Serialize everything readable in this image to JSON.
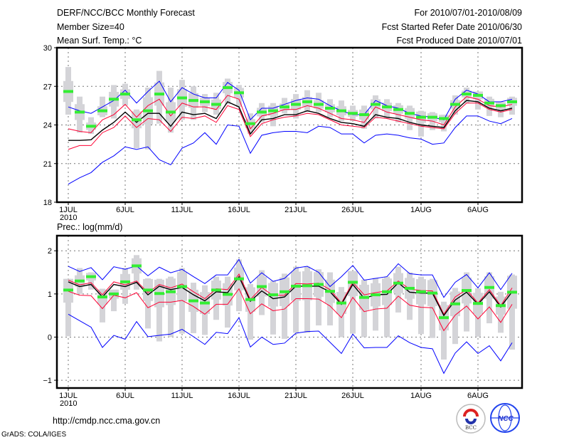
{
  "header": {
    "title": "DERF/NCC/BCC Monthly Forecast",
    "member_size": "Member Size=40",
    "period": "For 2010/07/01-2010/08/09",
    "start_date": "Fcst Started Refer Date 2010/06/30",
    "produced_date": "Fcst Produced Date 2010/07/01"
  },
  "footer": {
    "url": "http://cmdp.ncc.cma.gov.cn",
    "credit": "GrADS: COLA/IGES",
    "logo_bcc": "BCC",
    "logo_ncc": "NCC"
  },
  "colors": {
    "envelope": "#0000ff",
    "spread": "#ff0033",
    "mean": "#000000",
    "median": "#33ee33",
    "range": "#d4d4d8"
  },
  "chart_data": [
    {
      "type": "line",
      "title": "Mean Surf. Temp.: °C",
      "ylim": [
        18,
        30
      ],
      "yticks": [
        "18",
        "21",
        "24",
        "27",
        "30"
      ],
      "ytick_values": [
        18,
        21,
        24,
        27,
        30
      ],
      "xticks": [
        "1JUL",
        "6JUL",
        "11JUL",
        "16JUL",
        "21JUL",
        "26JUL",
        "1AUG",
        "6AUG"
      ],
      "xtick_days": [
        0,
        5,
        10,
        15,
        20,
        25,
        31,
        36
      ],
      "year_label": "2010",
      "grid": true,
      "days": 40,
      "series": {
        "upper_blue": [
          25.4,
          25.1,
          24.9,
          25.4,
          25.9,
          26.7,
          25.7,
          26.6,
          27.4,
          25.8,
          26.9,
          26.4,
          26.1,
          26.1,
          27.3,
          26.7,
          24.4,
          25.3,
          25.3,
          25.6,
          25.9,
          26.1,
          26.0,
          25.5,
          25.1,
          24.8,
          24.8,
          25.9,
          25.5,
          25.3,
          24.9,
          24.7,
          24.6,
          24.4,
          26.0,
          26.7,
          26.4,
          25.8,
          25.8,
          26.0
        ],
        "upper_red": [
          23.7,
          23.5,
          23.4,
          24.4,
          24.8,
          25.6,
          24.6,
          25.5,
          26.0,
          24.7,
          25.7,
          25.4,
          25.4,
          25.2,
          26.3,
          26.0,
          23.7,
          24.7,
          24.9,
          25.2,
          25.2,
          25.5,
          25.3,
          24.9,
          24.5,
          24.4,
          24.2,
          25.4,
          25.0,
          24.8,
          24.6,
          24.4,
          24.3,
          24.0,
          25.4,
          26.2,
          26.0,
          25.5,
          25.4,
          25.6
        ],
        "mean": [
          22.8,
          22.8,
          22.85,
          23.6,
          24.2,
          25.0,
          24.2,
          24.9,
          24.9,
          23.9,
          25.0,
          24.8,
          24.9,
          24.5,
          25.8,
          25.4,
          23.3,
          24.4,
          24.5,
          24.8,
          24.8,
          25.1,
          24.9,
          24.5,
          24.2,
          24.1,
          23.9,
          24.8,
          24.6,
          24.5,
          24.2,
          24.0,
          23.9,
          23.8,
          25.1,
          25.9,
          25.8,
          25.3,
          25.1,
          25.3
        ],
        "lower_red": [
          22.1,
          22.4,
          22.4,
          23.4,
          23.8,
          24.7,
          23.8,
          24.5,
          24.4,
          23.5,
          24.6,
          24.5,
          24.7,
          24.2,
          25.5,
          25.2,
          23.1,
          24.1,
          24.4,
          24.6,
          24.7,
          24.9,
          24.8,
          24.4,
          24.0,
          23.9,
          23.8,
          24.6,
          24.5,
          24.3,
          24.1,
          23.9,
          23.8,
          23.7,
          24.9,
          25.7,
          25.7,
          25.2,
          25.0,
          25.2
        ],
        "lower_blue": [
          19.4,
          19.9,
          20.3,
          21.1,
          21.6,
          22.3,
          22.1,
          22.3,
          21.3,
          20.9,
          22.2,
          22.6,
          23.4,
          22.5,
          24.0,
          23.9,
          21.8,
          23.2,
          23.4,
          23.5,
          23.5,
          23.4,
          23.9,
          23.8,
          23.3,
          23.3,
          22.6,
          23.2,
          23.3,
          23.2,
          23.0,
          22.9,
          22.5,
          22.6,
          23.8,
          24.7,
          24.7,
          24.3,
          24.1,
          24.5
        ],
        "median": [
          26.6,
          25.0,
          23.9,
          25.1,
          26.0,
          26.4,
          24.4,
          25.1,
          26.4,
          25.0,
          26.1,
          25.9,
          25.8,
          25.6,
          26.9,
          26.5,
          24.1,
          25.0,
          25.1,
          25.4,
          25.6,
          25.8,
          25.6,
          25.3,
          25.1,
          24.9,
          24.8,
          25.6,
          25.4,
          25.2,
          24.9,
          24.6,
          24.6,
          24.5,
          25.6,
          26.4,
          26.3,
          25.7,
          25.5,
          25.8
        ],
        "range_low": [
          24.8,
          23.4,
          23.3,
          24.6,
          24.5,
          25.5,
          22.2,
          22.1,
          24.1,
          23.4,
          24.4,
          24.4,
          25.0,
          24.8,
          25.6,
          25.4,
          23.3,
          24.2,
          23.9,
          24.9,
          24.5,
          25.0,
          25.0,
          24.6,
          24.3,
          24.3,
          23.7,
          24.5,
          24.5,
          24.2,
          23.6,
          23.1,
          23.6,
          23.5,
          24.8,
          25.7,
          25.2,
          24.7,
          24.6,
          24.8
        ],
        "range_high": [
          28.5,
          26.2,
          24.6,
          26.2,
          27.1,
          27.2,
          25.2,
          26.9,
          28.2,
          26.9,
          27.5,
          27.0,
          26.4,
          26.5,
          27.6,
          27.1,
          24.9,
          25.7,
          25.7,
          26.1,
          26.4,
          26.7,
          26.5,
          26.0,
          25.9,
          25.5,
          25.5,
          26.3,
          26.0,
          25.7,
          25.5,
          25.1,
          25.0,
          24.8,
          26.3,
          26.9,
          26.6,
          26.2,
          25.8,
          26.2
        ]
      }
    },
    {
      "type": "line",
      "title": "Prec.: log(mm/d)",
      "ylim": [
        -1.18,
        2.35
      ],
      "yticks": [
        "−1",
        "0",
        "1",
        "2"
      ],
      "ytick_values": [
        -1,
        0,
        1,
        2
      ],
      "xticks": [
        "1JUL",
        "6JUL",
        "11JUL",
        "16JUL",
        "21JUL",
        "26JUL",
        "1AUG",
        "6AUG"
      ],
      "xtick_days": [
        0,
        5,
        10,
        15,
        20,
        25,
        31,
        36
      ],
      "year_label": "2010",
      "grid": true,
      "days": 40,
      "series": {
        "upper_blue": [
          1.64,
          1.52,
          1.61,
          1.33,
          1.63,
          1.57,
          1.65,
          1.42,
          1.62,
          1.49,
          1.57,
          1.4,
          1.24,
          1.44,
          1.44,
          1.8,
          1.25,
          1.49,
          1.29,
          1.36,
          1.6,
          1.64,
          1.5,
          1.17,
          1.4,
          1.66,
          1.32,
          1.36,
          1.4,
          1.7,
          1.47,
          1.44,
          1.44,
          0.92,
          1.27,
          1.45,
          1.14,
          1.49,
          1.1,
          1.48
        ],
        "upper_red": [
          1.32,
          1.21,
          1.26,
          0.98,
          1.28,
          1.21,
          1.3,
          1.03,
          1.22,
          1.14,
          1.23,
          1.05,
          0.89,
          1.12,
          1.1,
          1.46,
          0.87,
          1.15,
          0.96,
          0.97,
          1.24,
          1.23,
          1.25,
          1.1,
          0.79,
          1.27,
          0.98,
          1.03,
          1.07,
          1.3,
          1.11,
          1.08,
          1.07,
          0.53,
          0.93,
          1.1,
          0.79,
          1.1,
          0.73,
          1.14
        ],
        "mean": [
          1.28,
          1.17,
          1.22,
          0.93,
          1.22,
          1.17,
          1.27,
          0.98,
          1.18,
          1.1,
          1.15,
          0.98,
          0.84,
          1.05,
          1.03,
          1.4,
          0.83,
          1.07,
          0.89,
          0.93,
          1.18,
          1.18,
          1.18,
          1.05,
          0.76,
          1.22,
          0.9,
          0.98,
          0.99,
          1.26,
          1.04,
          1.02,
          1.02,
          0.5,
          0.86,
          1.04,
          0.76,
          1.05,
          0.7,
          1.05
        ],
        "lower_red": [
          1.06,
          0.97,
          0.96,
          0.66,
          0.97,
          0.91,
          1.03,
          0.68,
          0.81,
          0.81,
          0.85,
          0.71,
          0.53,
          0.76,
          0.76,
          1.12,
          0.54,
          0.77,
          0.61,
          0.65,
          0.89,
          0.89,
          0.88,
          0.72,
          0.45,
          0.92,
          0.59,
          0.65,
          0.67,
          0.95,
          0.74,
          0.69,
          0.68,
          0.15,
          0.51,
          0.72,
          0.42,
          0.7,
          0.34,
          0.76
        ],
        "lower_blue": [
          0.53,
          0.38,
          0.23,
          -0.24,
          0.04,
          -0.05,
          0.36,
          0.01,
          0.04,
          0.07,
          0.18,
          0.01,
          -0.17,
          0.11,
          0.08,
          0.45,
          -0.23,
          0.0,
          -0.17,
          -0.14,
          0.09,
          0.13,
          0.14,
          -0.12,
          -0.38,
          0.07,
          -0.25,
          -0.24,
          -0.24,
          0.03,
          -0.13,
          -0.24,
          -0.27,
          -0.84,
          -0.37,
          -0.11,
          -0.38,
          -0.2,
          -0.55,
          -0.13
        ],
        "median": [
          1.09,
          1.3,
          1.4,
          0.93,
          1.0,
          1.28,
          1.65,
          1.09,
          1.01,
          1.05,
          1.17,
          0.84,
          0.79,
          1.09,
          0.99,
          1.35,
          0.87,
          1.17,
          0.98,
          1.05,
          1.18,
          1.19,
          1.22,
          1.06,
          0.79,
          1.27,
          0.92,
          0.98,
          1.05,
          1.25,
          1.13,
          1.05,
          1.02,
          0.45,
          0.77,
          1.08,
          0.78,
          1.15,
          0.73,
          1.04
        ],
        "range_low": [
          0.02,
          1.0,
          1.1,
          0.34,
          0.6,
          0.77,
          1.1,
          0.2,
          -0.1,
          0.0,
          0.08,
          0.09,
          0.05,
          0.4,
          0.22,
          0.6,
          -0.06,
          0.51,
          0.06,
          -0.04,
          0.1,
          0.1,
          0.27,
          0.27,
          0.0,
          0.08,
          0.0,
          0.15,
          0.0,
          0.57,
          0.4,
          0.07,
          -0.02,
          -0.52,
          -0.16,
          0.13,
          0.01,
          0.32,
          0.1,
          -0.29
        ],
        "range_high": [
          1.35,
          1.6,
          1.5,
          1.12,
          1.1,
          1.6,
          1.9,
          1.36,
          1.35,
          1.4,
          1.6,
          1.26,
          1.2,
          1.4,
          1.4,
          1.8,
          1.23,
          1.55,
          1.3,
          1.47,
          1.63,
          1.63,
          1.57,
          1.5,
          1.16,
          1.53,
          1.33,
          1.37,
          1.4,
          1.63,
          1.5,
          1.4,
          1.35,
          0.82,
          1.14,
          1.5,
          1.13,
          1.5,
          1.05,
          1.45
        ]
      }
    }
  ]
}
